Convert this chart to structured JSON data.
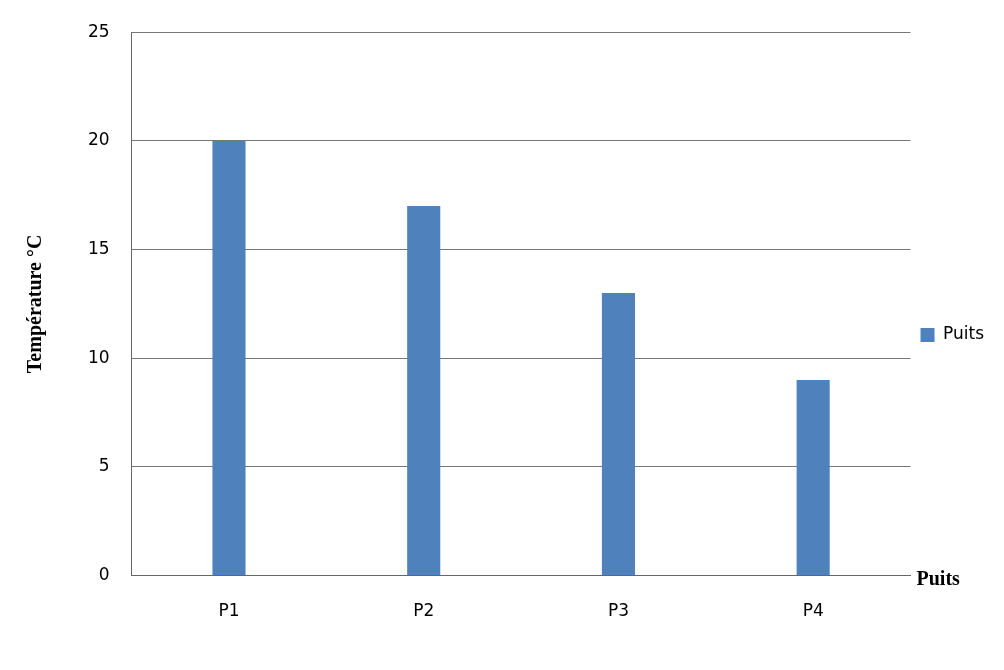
{
  "chart_data": {
    "type": "bar",
    "categories": [
      "P1",
      "P2",
      "P3",
      "P4"
    ],
    "series": [
      {
        "name": "Puits",
        "color": "#4f81bd",
        "values": [
          20,
          17,
          13,
          9
        ]
      }
    ],
    "ylabel": "Température °C",
    "xlabel": "Puits",
    "ylim": [
      0,
      25
    ],
    "yticks": [
      0,
      5,
      10,
      15,
      20,
      25
    ],
    "grid": "y",
    "legend": "right"
  }
}
